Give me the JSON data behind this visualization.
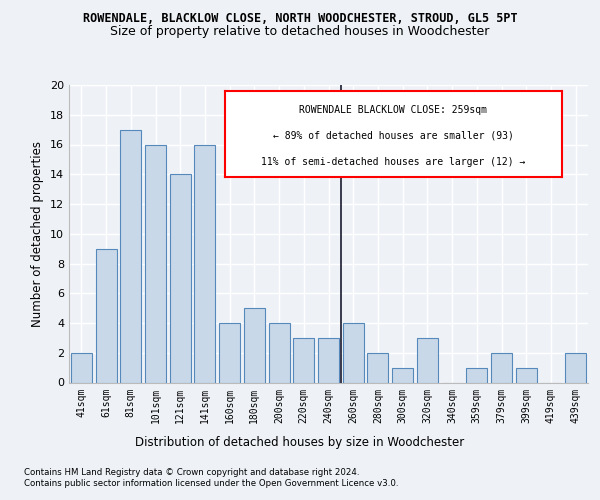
{
  "title1": "ROWENDALE, BLACKLOW CLOSE, NORTH WOODCHESTER, STROUD, GL5 5PT",
  "title2": "Size of property relative to detached houses in Woodchester",
  "xlabel": "Distribution of detached houses by size in Woodchester",
  "ylabel": "Number of detached properties",
  "categories": [
    "41sqm",
    "61sqm",
    "81sqm",
    "101sqm",
    "121sqm",
    "141sqm",
    "160sqm",
    "180sqm",
    "200sqm",
    "220sqm",
    "240sqm",
    "260sqm",
    "280sqm",
    "300sqm",
    "320sqm",
    "340sqm",
    "359sqm",
    "379sqm",
    "399sqm",
    "419sqm",
    "439sqm"
  ],
  "values": [
    2,
    9,
    17,
    16,
    14,
    16,
    4,
    5,
    4,
    3,
    3,
    4,
    2,
    1,
    3,
    0,
    1,
    2,
    1,
    0,
    2
  ],
  "bar_color": "#c8d8e8",
  "bar_edge_color": "#5588bb",
  "annotation_title": "ROWENDALE BLACKLOW CLOSE: 259sqm",
  "annotation_line1": "← 89% of detached houses are smaller (93)",
  "annotation_line2": "11% of semi-detached houses are larger (12) →",
  "footer1": "Contains HM Land Registry data © Crown copyright and database right 2024.",
  "footer2": "Contains public sector information licensed under the Open Government Licence v3.0.",
  "ylim": [
    0,
    20
  ],
  "yticks": [
    0,
    2,
    4,
    6,
    8,
    10,
    12,
    14,
    16,
    18,
    20
  ],
  "bg_color": "#eef2f7",
  "grid_color": "#ffffff",
  "vline_index": 11
}
